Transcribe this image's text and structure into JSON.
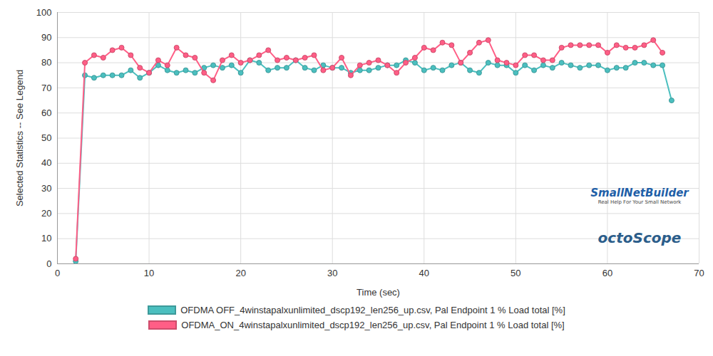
{
  "chart_data": {
    "type": "line",
    "x_label": "Time (sec)",
    "y_label": "Selected Statistics -- See Legend",
    "annotations": [
      "SmallNetBuilder",
      "Real Help For Your Small Network",
      "octoScope"
    ],
    "x": [
      2,
      3,
      4,
      5,
      6,
      7,
      8,
      9,
      10,
      11,
      12,
      13,
      14,
      15,
      16,
      17,
      18,
      19,
      20,
      21,
      22,
      23,
      24,
      25,
      26,
      27,
      28,
      29,
      30,
      31,
      32,
      33,
      34,
      35,
      36,
      37,
      38,
      39,
      40,
      41,
      42,
      43,
      44,
      45,
      46,
      47,
      48,
      49,
      50,
      51,
      52,
      53,
      54,
      55,
      56,
      57,
      58,
      59,
      60,
      61,
      62,
      63,
      64,
      65,
      66,
      67
    ],
    "series": [
      {
        "name": "OFDMA OFF_4winstapalxunlimited_dscp192_len256_up.csv, Pal Endpoint 1 % Load total [%]",
        "color": "#4bbfbf",
        "marker": "circle",
        "values": [
          1,
          75,
          74,
          75,
          75,
          75,
          77,
          74,
          76,
          79,
          77,
          76,
          77,
          76,
          78,
          79,
          78,
          79,
          76,
          81,
          80,
          77,
          78,
          78,
          81,
          78,
          77,
          79,
          78,
          78,
          76,
          77,
          77,
          78,
          79,
          79,
          81,
          80,
          77,
          78,
          77,
          79,
          80,
          77,
          76,
          80,
          79,
          79,
          76,
          79,
          77,
          79,
          78,
          80,
          79,
          78,
          79,
          79,
          77,
          78,
          78,
          80,
          80,
          79,
          79,
          65
        ]
      },
      {
        "name": "OFDMA_ON_4winstapalxunlimited_dscp192_len256_up.csv, Pal Endpoint 1 % Load total [%]",
        "color": "#ff5e86",
        "marker": "circle",
        "values": [
          2,
          80,
          83,
          82,
          85,
          86,
          83,
          78,
          76,
          81,
          79,
          86,
          83,
          82,
          76,
          73,
          81,
          83,
          80,
          81,
          83,
          85,
          81,
          82,
          81,
          82,
          83,
          77,
          78,
          82,
          75,
          79,
          80,
          81,
          79,
          76,
          80,
          82,
          86,
          85,
          88,
          87,
          80,
          84,
          88,
          89,
          81,
          80,
          79,
          83,
          83,
          81,
          81,
          86,
          87,
          87,
          87,
          87,
          84,
          87,
          86,
          86,
          87,
          89,
          84,
          null
        ]
      }
    ],
    "xlim": [
      0,
      70
    ],
    "xticks": [
      0,
      10,
      20,
      30,
      40,
      50,
      60,
      70
    ],
    "ylim": [
      0,
      100
    ],
    "yticks": [
      0,
      10,
      20,
      30,
      40,
      50,
      60,
      70,
      80,
      90,
      100
    ],
    "grid": true
  }
}
